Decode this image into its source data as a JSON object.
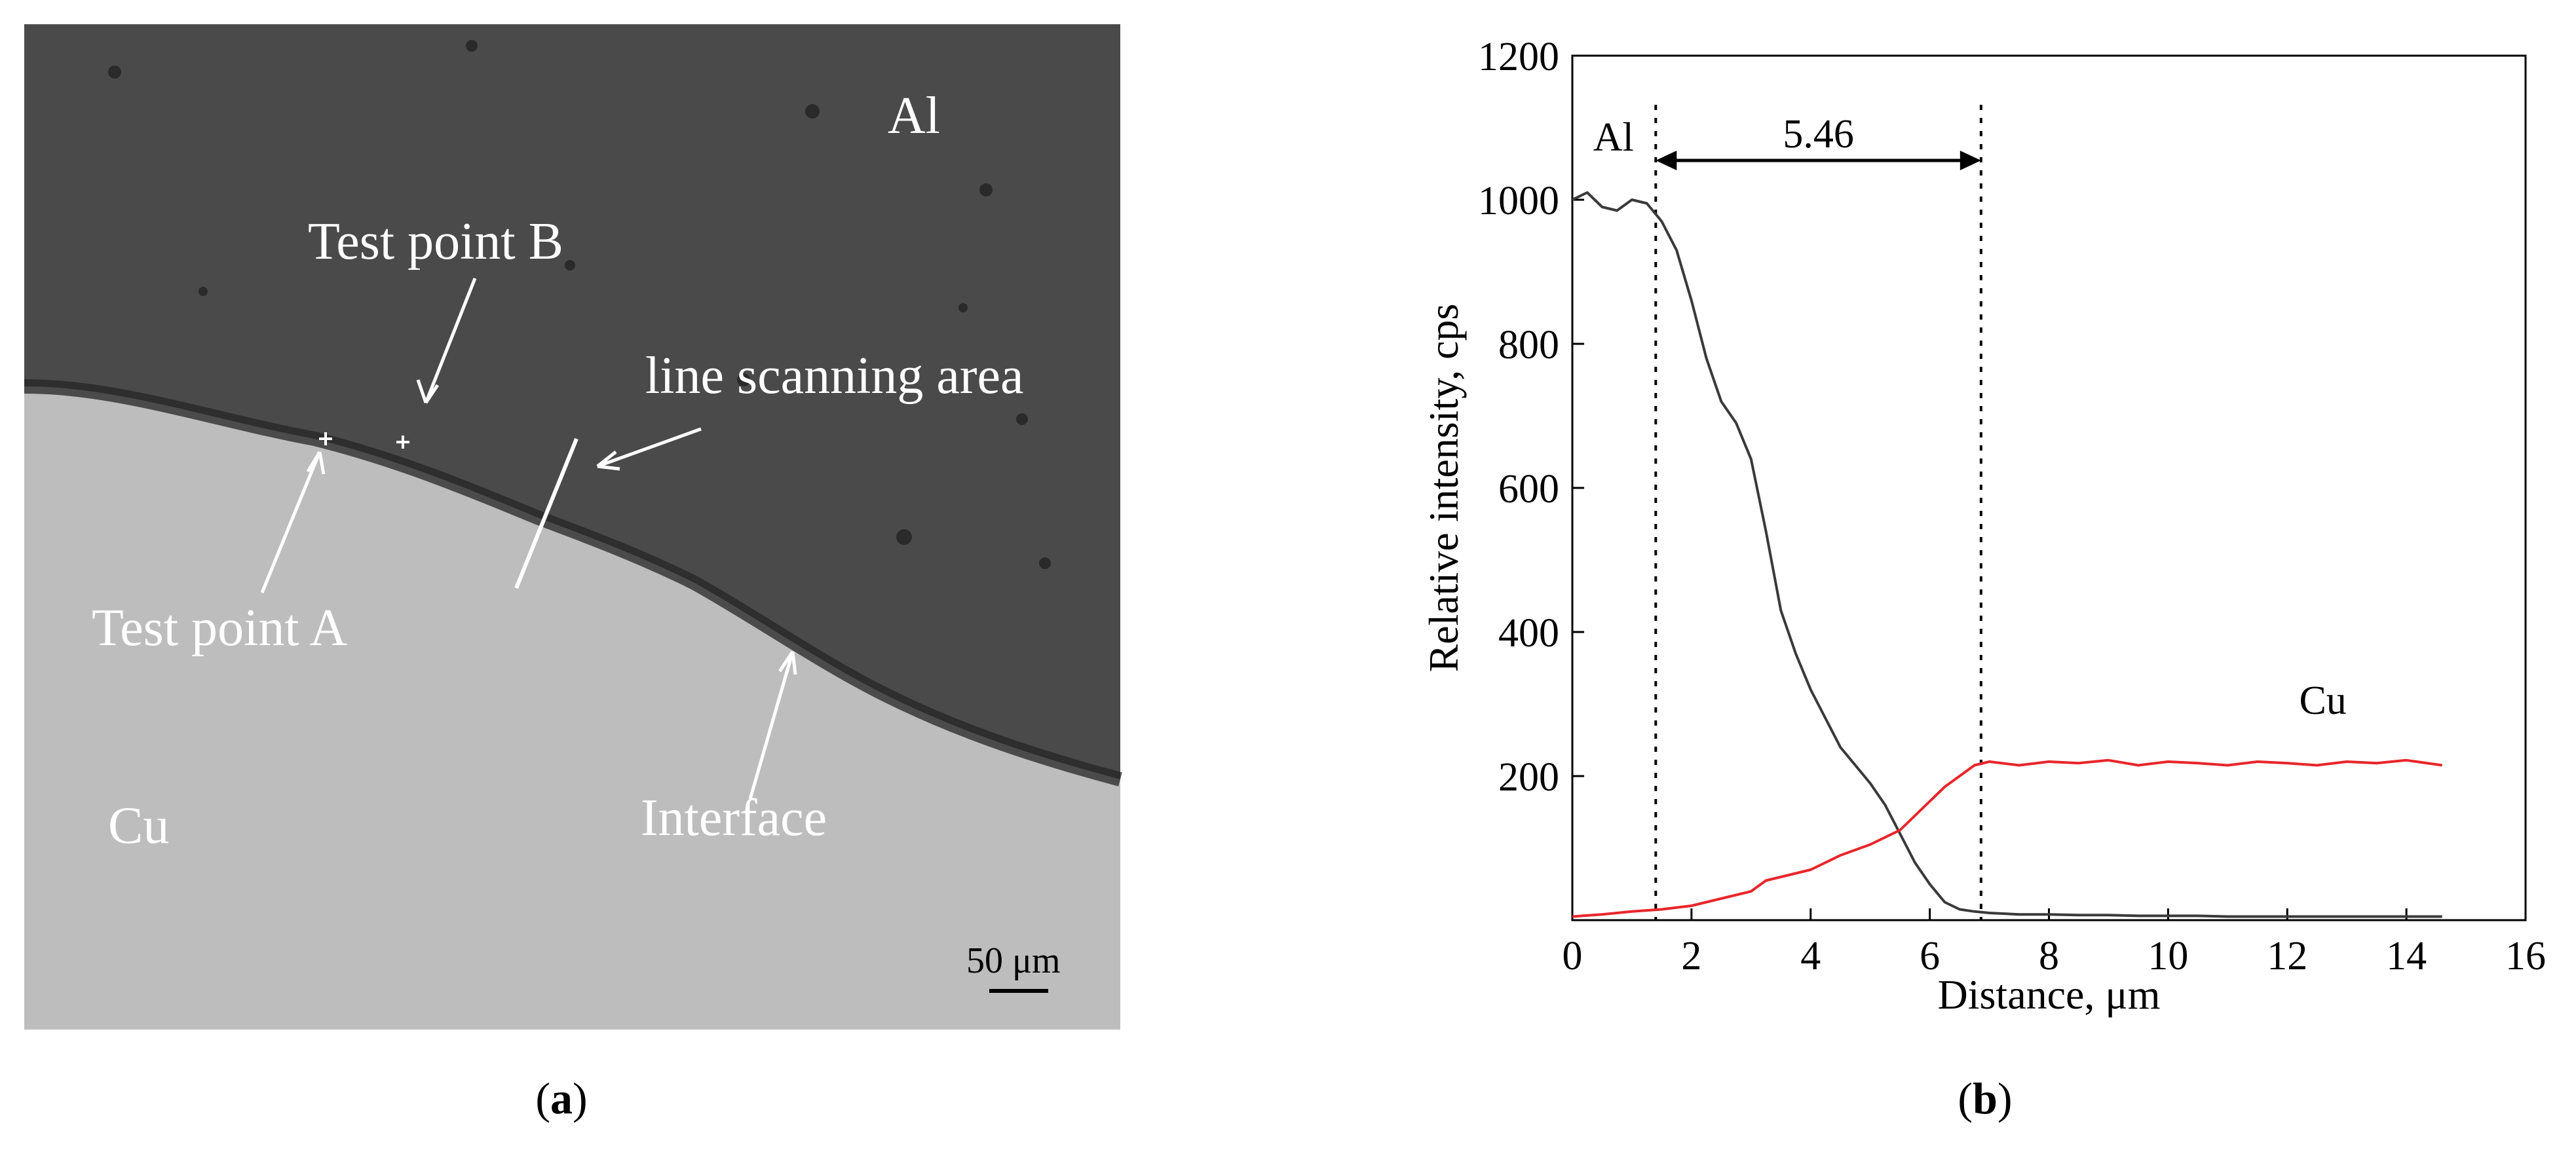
{
  "panel_a": {
    "caption": "(a)",
    "caption_letter": "a",
    "labels": {
      "top_material": "Al",
      "bottom_material": "Cu",
      "test_point_b": "Test point B",
      "test_point_a": "Test point A",
      "line_scan": "line scanning area",
      "interface": "Interface",
      "scale_bar": "50 μm"
    },
    "colors": {
      "al_region": "#4a4a4a",
      "cu_region": "#bdbdbd",
      "annotation": "#ffffff"
    }
  },
  "panel_b": {
    "caption": "(b)",
    "caption_letter": "b"
  },
  "chart_data": {
    "type": "line",
    "title": "",
    "xlabel": "Distance, μm",
    "ylabel": "Relative intensity, cps",
    "xlim": [
      0,
      16
    ],
    "ylim": [
      0,
      1200
    ],
    "xticks": [
      0,
      2,
      4,
      6,
      8,
      10,
      12,
      14,
      16
    ],
    "yticks": [
      200,
      400,
      600,
      800,
      1000,
      1200
    ],
    "grid": false,
    "annotations": {
      "al_label": "Al",
      "cu_label": "Cu",
      "width_label": "5.46",
      "dashed_lines_x": [
        1.4,
        6.86
      ]
    },
    "series": [
      {
        "name": "Al",
        "color": "#3a3a3a",
        "x": [
          0,
          0.25,
          0.5,
          0.75,
          1.0,
          1.25,
          1.5,
          1.75,
          2.0,
          2.25,
          2.5,
          2.75,
          3.0,
          3.25,
          3.5,
          3.75,
          4.0,
          4.25,
          4.5,
          4.75,
          5.0,
          5.25,
          5.5,
          5.75,
          6.0,
          6.25,
          6.5,
          6.75,
          7.0,
          7.5,
          8.0,
          8.5,
          9.0,
          9.5,
          10.0,
          10.5,
          11.0,
          11.5,
          12.0,
          12.5,
          13.0,
          13.5,
          14.0,
          14.6
        ],
        "y": [
          1000,
          1010,
          990,
          985,
          1000,
          995,
          970,
          930,
          860,
          780,
          720,
          690,
          640,
          540,
          430,
          370,
          320,
          280,
          240,
          215,
          190,
          160,
          120,
          80,
          50,
          25,
          15,
          12,
          10,
          8,
          8,
          7,
          7,
          6,
          6,
          6,
          5,
          5,
          5,
          5,
          5,
          5,
          5,
          5
        ]
      },
      {
        "name": "Cu",
        "color": "#e8262b",
        "x": [
          0,
          0.5,
          1.0,
          1.5,
          2.0,
          2.5,
          3.0,
          3.25,
          3.5,
          4.0,
          4.5,
          5.0,
          5.5,
          5.75,
          6.0,
          6.25,
          6.5,
          6.75,
          7.0,
          7.5,
          8.0,
          8.5,
          9.0,
          9.5,
          10.0,
          10.5,
          11.0,
          11.5,
          12.0,
          12.5,
          13.0,
          13.5,
          14.0,
          14.6
        ],
        "y": [
          5,
          8,
          12,
          15,
          20,
          30,
          40,
          55,
          60,
          70,
          90,
          105,
          125,
          145,
          165,
          185,
          200,
          215,
          220,
          215,
          220,
          218,
          222,
          215,
          220,
          218,
          215,
          220,
          218,
          215,
          220,
          218,
          222,
          215
        ]
      }
    ]
  }
}
